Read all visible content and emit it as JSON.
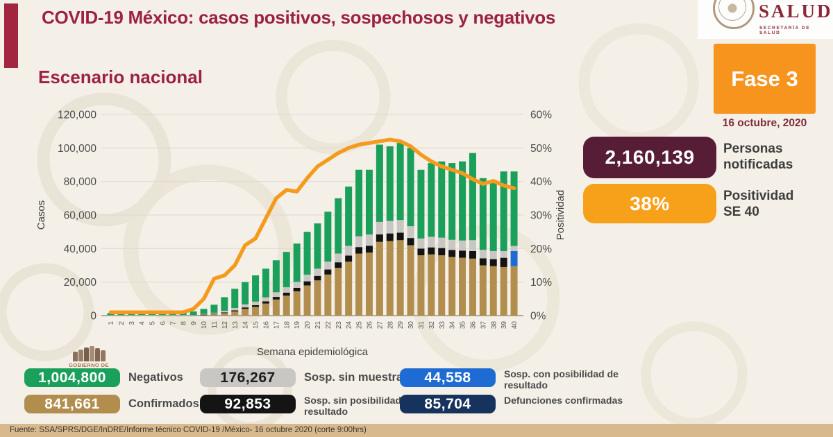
{
  "header": {
    "title": "COVID-19 México: casos positivos, sospechosos y negativos",
    "logo_name": "SALUD",
    "logo_subtitle": "SECRETARÍA DE SALUD"
  },
  "section_title": "Escenario nacional",
  "phase": {
    "label": "Fase 3",
    "date": "16 octubre, 2020",
    "color": "#f7941e"
  },
  "stats": [
    {
      "value": "2,160,139",
      "label": "Personas\nnotificadas",
      "color": "#571c36"
    },
    {
      "value": "38%",
      "label": "Positividad\nSE 40",
      "color": "#f7a11b"
    }
  ],
  "chart_data": {
    "type": "bar",
    "subtype": "stacked-bars-with-line",
    "title": "",
    "xlabel": "Semana epidemiológica",
    "ylabel_left": "Casos",
    "ylabel_right": "Positividad",
    "ylim_left": [
      0,
      120000
    ],
    "ylim_right": [
      0,
      60
    ],
    "ytick_step_left": 20000,
    "ytick_step_right": 10,
    "yticks_left": [
      "0",
      "20,000",
      "40,000",
      "60,000",
      "80,000",
      "100,000",
      "120,000"
    ],
    "yticks_right": [
      "0%",
      "10%",
      "20%",
      "30%",
      "40%",
      "50%",
      "60%"
    ],
    "grid": true,
    "x": [
      1,
      2,
      3,
      4,
      5,
      6,
      7,
      8,
      9,
      10,
      11,
      12,
      13,
      14,
      15,
      16,
      17,
      18,
      19,
      20,
      21,
      22,
      23,
      24,
      25,
      26,
      27,
      28,
      29,
      30,
      31,
      32,
      33,
      34,
      35,
      36,
      37,
      38,
      39,
      40
    ],
    "series": [
      {
        "key": "confirmados",
        "name": "Confirmados",
        "color": "#b28e4e",
        "values": [
          100,
          100,
          110,
          120,
          130,
          130,
          130,
          150,
          200,
          450,
          900,
          1500,
          2500,
          4000,
          5200,
          7200,
          9600,
          11900,
          14500,
          18000,
          21000,
          24500,
          28500,
          32200,
          37000,
          37600,
          44000,
          44500,
          45000,
          42000,
          36000,
          36500,
          36000,
          35000,
          34500,
          34000,
          30000,
          29500,
          29000,
          29500
        ]
      },
      {
        "key": "sosp_sin_posibilidad",
        "name": "Sosp. sin posibilidad de resultado",
        "color": "#141414",
        "values": [
          0,
          0,
          0,
          0,
          0,
          0,
          0,
          0,
          50,
          150,
          250,
          450,
          650,
          900,
          1050,
          1300,
          1550,
          1800,
          2100,
          2450,
          2700,
          3000,
          3300,
          3600,
          3900,
          4100,
          4500,
          4500,
          4500,
          4300,
          4000,
          4200,
          4300,
          4200,
          4300,
          4500,
          4200,
          4200,
          5500,
          0
        ]
      },
      {
        "key": "sosp_con_posibilidad",
        "name": "Sosp. con posibilidad de resultado",
        "color": "#1e6bd3",
        "values": [
          0,
          0,
          0,
          0,
          0,
          0,
          0,
          0,
          0,
          0,
          0,
          0,
          0,
          0,
          0,
          0,
          0,
          0,
          0,
          0,
          0,
          0,
          0,
          0,
          0,
          0,
          0,
          0,
          0,
          0,
          0,
          0,
          0,
          0,
          0,
          0,
          0,
          0,
          0,
          9000
        ]
      },
      {
        "key": "sosp_sin_muestra",
        "name": "Sosp. sin muestra",
        "color": "#c9c7c4",
        "values": [
          80,
          100,
          110,
          120,
          120,
          120,
          120,
          120,
          150,
          350,
          550,
          950,
          1400,
          1800,
          2100,
          2400,
          2800,
          3200,
          3500,
          4000,
          4300,
          4700,
          5200,
          5800,
          6400,
          6700,
          7400,
          7500,
          7500,
          7000,
          6000,
          6300,
          6200,
          6000,
          6000,
          6500,
          5000,
          4800,
          4000,
          3000
        ]
      },
      {
        "key": "negativos",
        "name": "Negativos",
        "color": "#1ba05c",
        "values": [
          1320,
          1800,
          1980,
          2160,
          2250,
          2150,
          2050,
          1930,
          2100,
          3050,
          4800,
          8100,
          11450,
          13300,
          15650,
          17100,
          19050,
          21100,
          22900,
          25550,
          27000,
          29800,
          33000,
          35400,
          39700,
          38600,
          46100,
          44500,
          46000,
          46700,
          41000,
          44000,
          45500,
          45800,
          47200,
          52000,
          42800,
          40500,
          47500,
          44500
        ]
      }
    ],
    "line": {
      "name": "Positividad",
      "color": "#f49b1e",
      "values": [
        1,
        1,
        1,
        1,
        1,
        1,
        1,
        1,
        2,
        5,
        11,
        12,
        15,
        21,
        23,
        29,
        35,
        37.5,
        37,
        41,
        44.5,
        46.5,
        48.5,
        50,
        51,
        51.5,
        52,
        52.5,
        52,
        50.5,
        48,
        46,
        44.5,
        43.5,
        42.5,
        40.7,
        39.3,
        40.2,
        38.8,
        38
      ]
    },
    "legend_position": "bottom"
  },
  "legend": [
    {
      "value": "1,004,800",
      "label": "Negativos",
      "color": "#1ba05c",
      "text_color": "#ffffff"
    },
    {
      "value": "176,267",
      "label": "Sosp. sin muestra",
      "color": "#c9c7c4",
      "text_color": "#1c1c1c"
    },
    {
      "value": "44,558",
      "label": "Sosp. con posibilidad de resultado",
      "color": "#1e6bd3",
      "text_color": "#ffffff"
    },
    {
      "value": "841,661",
      "label": "Confirmados",
      "color": "#b28e4e",
      "text_color": "#ffffff"
    },
    {
      "value": "92,853",
      "label": "Sosp. sin posibilidad de resultado",
      "color": "#141414",
      "text_color": "#ffffff"
    },
    {
      "value": "85,704",
      "label": "Defunciones confirmadas",
      "color": "#16335d",
      "text_color": "#ffffff"
    }
  ],
  "watermark": {
    "text": "GOBIERNO DE"
  },
  "footer": {
    "source": "Fuente: SSA/SPRS/DGE/InDRE/Informe técnico COVID-19 /México- 16 octubre 2020 (corte 9:00hrs)"
  }
}
